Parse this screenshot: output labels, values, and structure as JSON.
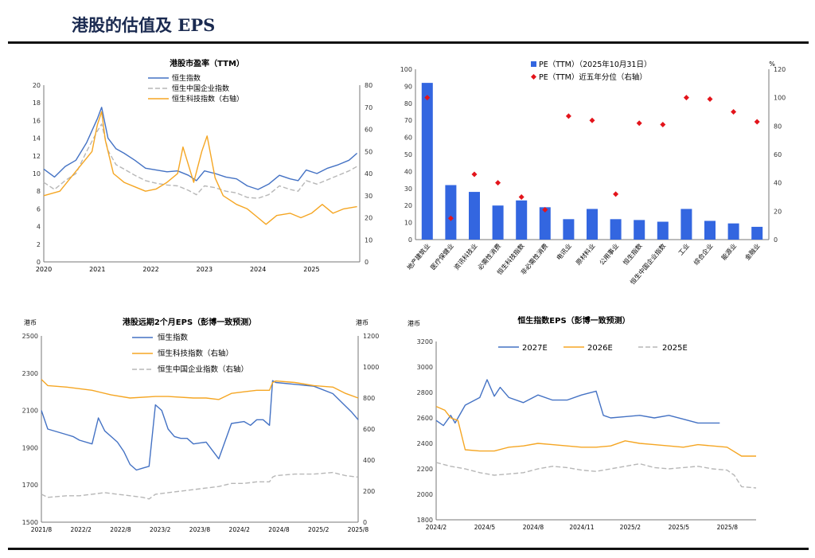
{
  "page": {
    "title": "港股的估值及 EPS"
  },
  "colors": {
    "blue": "#4472C4",
    "orange": "#F5A623",
    "gray": "#B7B7B7",
    "bar": "#3366E0",
    "dot": "#E3141B"
  },
  "chart_data": [
    {
      "type": "line",
      "title": "港股市盈率（TTM）",
      "x_ticks": [
        "2020",
        "2021",
        "2022",
        "2023",
        "2024",
        "2025"
      ],
      "x_range": [
        2020,
        2025.9
      ],
      "y_left": {
        "min": 0,
        "max": 20,
        "ticks": [
          "0",
          "2",
          "4",
          "6",
          "8",
          "10",
          "12",
          "14",
          "16",
          "18",
          "20"
        ]
      },
      "y_right": {
        "min": 0,
        "max": 80,
        "ticks": [
          "0",
          "10",
          "20",
          "30",
          "40",
          "50",
          "60",
          "70",
          "80"
        ]
      },
      "series": [
        {
          "name": "恒生指数",
          "axis": "left",
          "color": "#4472C4",
          "dash": false,
          "x": [
            2020,
            2020.2,
            2020.4,
            2020.6,
            2020.8,
            2021.0,
            2021.08,
            2021.2,
            2021.35,
            2021.5,
            2021.7,
            2021.9,
            2022.1,
            2022.3,
            2022.5,
            2022.7,
            2022.85,
            2023.0,
            2023.2,
            2023.4,
            2023.6,
            2023.8,
            2024.0,
            2024.2,
            2024.4,
            2024.6,
            2024.75,
            2024.9,
            2025.1,
            2025.3,
            2025.5,
            2025.7,
            2025.85
          ],
          "y": [
            10.5,
            9.6,
            10.8,
            11.5,
            13.5,
            16.2,
            17.5,
            14.0,
            12.8,
            12.3,
            11.5,
            10.6,
            10.4,
            10.2,
            10.3,
            9.8,
            9.2,
            10.3,
            10.0,
            9.6,
            9.4,
            8.6,
            8.2,
            8.8,
            9.8,
            9.4,
            9.2,
            10.4,
            10.0,
            10.6,
            11.0,
            11.5,
            12.3
          ]
        },
        {
          "name": "恒生中国企业指数",
          "axis": "left",
          "color": "#B7B7B7",
          "dash": true,
          "x": [
            2020,
            2020.2,
            2020.4,
            2020.6,
            2020.8,
            2021.0,
            2021.08,
            2021.2,
            2021.35,
            2021.5,
            2021.7,
            2021.9,
            2022.1,
            2022.3,
            2022.5,
            2022.7,
            2022.85,
            2023.0,
            2023.2,
            2023.4,
            2023.6,
            2023.8,
            2024.0,
            2024.2,
            2024.4,
            2024.6,
            2024.75,
            2024.9,
            2025.1,
            2025.3,
            2025.5,
            2025.7,
            2025.85
          ],
          "y": [
            9.0,
            8.2,
            9.2,
            10.0,
            12.5,
            14.8,
            15.6,
            12.6,
            11.0,
            10.5,
            9.8,
            9.2,
            8.9,
            8.7,
            8.6,
            8.1,
            7.6,
            8.6,
            8.4,
            8.0,
            7.8,
            7.3,
            7.2,
            7.6,
            8.6,
            8.2,
            8.0,
            9.2,
            8.8,
            9.3,
            9.8,
            10.3,
            10.8
          ]
        },
        {
          "name": "恒生科技指数（右轴）",
          "axis": "right",
          "color": "#F5A623",
          "dash": false,
          "x": [
            2020,
            2020.3,
            2020.5,
            2020.7,
            2020.9,
            2021.0,
            2021.08,
            2021.15,
            2021.3,
            2021.5,
            2021.7,
            2021.9,
            2022.1,
            2022.3,
            2022.5,
            2022.6,
            2022.8,
            2022.95,
            2023.05,
            2023.2,
            2023.35,
            2023.6,
            2023.8,
            2024.0,
            2024.15,
            2024.35,
            2024.6,
            2024.8,
            2025.0,
            2025.2,
            2025.4,
            2025.6,
            2025.85
          ],
          "y": [
            30,
            32,
            38,
            44,
            50,
            62,
            68,
            55,
            40,
            36,
            34,
            32,
            33,
            36,
            40,
            52,
            36,
            50,
            57,
            38,
            30,
            26,
            24,
            20,
            17,
            21,
            22,
            20,
            22,
            26,
            22,
            24,
            25
          ]
        }
      ]
    },
    {
      "type": "bar",
      "legend": [
        "PE（TTM）（2025年10月31日）",
        "PE（TTM）近五年分位（右轴）"
      ],
      "categories": [
        "地产建筑业",
        "医疗保健业",
        "资讯科技业",
        "必需性消费",
        "恒生科技指数",
        "非必需性消费",
        "电讯业",
        "原材料业",
        "公用事业",
        "恒生指数",
        "恒生中国企业指数",
        "工业",
        "综合企业",
        "能源业",
        "金融业"
      ],
      "values": [
        92,
        32,
        28,
        20,
        23,
        19,
        12,
        18,
        12,
        11.5,
        10.5,
        18,
        11,
        9.5,
        7.5
      ],
      "percentile": [
        100,
        15,
        46,
        40,
        30,
        21,
        87,
        84,
        32,
        82,
        81,
        100,
        99,
        90,
        83
      ],
      "y_left": {
        "min": 0,
        "max": 100,
        "ticks": [
          "0",
          "10",
          "20",
          "30",
          "40",
          "50",
          "60",
          "70",
          "80",
          "90",
          "100"
        ]
      },
      "y_right": {
        "min": 0,
        "max": 120,
        "ticks": [
          "0",
          "20",
          "40",
          "60",
          "80",
          "100",
          "120"
        ],
        "unit": "%"
      }
    },
    {
      "type": "line",
      "title": "港股远期2个月EPS（彭博一致预测）",
      "unit_left": "港币",
      "unit_right": "港币",
      "x_ticks": [
        "2021/8",
        "2022/2",
        "2022/8",
        "2023/2",
        "2023/8",
        "2024/2",
        "2024/8",
        "2025/2",
        "2025/8"
      ],
      "x_range": [
        0,
        50
      ],
      "y_left": {
        "min": 1500,
        "max": 2500,
        "ticks": [
          "1500",
          "1700",
          "1900",
          "2100",
          "2300",
          "2500"
        ]
      },
      "y_right": {
        "min": 0,
        "max": 1200,
        "ticks": [
          "0",
          "200",
          "400",
          "600",
          "800",
          "1000",
          "1200"
        ]
      },
      "series": [
        {
          "name": "恒生指数",
          "axis": "left",
          "color": "#4472C4",
          "dash": false,
          "x": [
            0,
            1,
            4,
            5,
            6,
            8,
            9,
            10,
            11,
            12,
            13,
            14,
            15,
            16,
            17,
            18,
            19,
            20,
            21,
            22,
            23,
            24,
            26,
            28,
            30,
            32,
            33,
            34,
            35,
            36,
            36.5,
            37,
            40,
            43,
            46,
            49,
            50
          ],
          "y": [
            2100,
            2000,
            1970,
            1960,
            1940,
            1920,
            2060,
            1990,
            1960,
            1930,
            1880,
            1810,
            1780,
            1790,
            1800,
            2130,
            2100,
            2000,
            1960,
            1950,
            1950,
            1920,
            1930,
            1840,
            2030,
            2040,
            2020,
            2050,
            2050,
            2020,
            2260,
            2250,
            2240,
            2230,
            2190,
            2090,
            2050
          ]
        },
        {
          "name": "恒生科技指数（右轴）",
          "axis": "right",
          "color": "#F5A623",
          "dash": false,
          "x": [
            0,
            1,
            4,
            6,
            8,
            11,
            14,
            18,
            20,
            24,
            26,
            28,
            30,
            32,
            34,
            36,
            36.5,
            37,
            40,
            43,
            46,
            48,
            50
          ],
          "y": [
            920,
            880,
            870,
            860,
            850,
            820,
            800,
            810,
            810,
            800,
            800,
            790,
            830,
            840,
            850,
            850,
            900,
            910,
            900,
            880,
            870,
            830,
            800
          ]
        },
        {
          "name": "恒生中国企业指数（右轴）",
          "axis": "right",
          "color": "#B7B7B7",
          "dash": true,
          "x": [
            0,
            1,
            4,
            6,
            8,
            10,
            12,
            14,
            16,
            17,
            18,
            20,
            22,
            24,
            26,
            28,
            30,
            32,
            34,
            36,
            36.5,
            37,
            40,
            43,
            46,
            48,
            50
          ],
          "y": [
            180,
            160,
            170,
            170,
            180,
            190,
            180,
            170,
            160,
            150,
            180,
            190,
            200,
            210,
            220,
            230,
            250,
            250,
            260,
            260,
            290,
            300,
            310,
            310,
            320,
            300,
            290
          ]
        }
      ]
    },
    {
      "type": "line",
      "title": "恒生指数EPS（彭博一致预测）",
      "unit_left": "港币",
      "x_ticks": [
        "2024/2",
        "2024/5",
        "2024/8",
        "2024/11",
        "2025/2",
        "2025/5",
        "2025/8"
      ],
      "x_range": [
        0,
        22
      ],
      "y_left": {
        "min": 1800,
        "max": 3200,
        "ticks": [
          "1800",
          "2000",
          "2200",
          "2400",
          "2600",
          "2800",
          "3000",
          "3200"
        ]
      },
      "series": [
        {
          "name": "2027E",
          "color": "#4472C4",
          "dash": false,
          "x": [
            0,
            0.5,
            1,
            1.3,
            2,
            3,
            3.5,
            4,
            4.4,
            5,
            6,
            7,
            8,
            9,
            10,
            11,
            11.5,
            12,
            13,
            14,
            15,
            16,
            17,
            18,
            19,
            19.5
          ],
          "y": [
            2580,
            2540,
            2620,
            2560,
            2700,
            2760,
            2900,
            2770,
            2840,
            2760,
            2720,
            2780,
            2740,
            2740,
            2780,
            2810,
            2620,
            2600,
            2610,
            2620,
            2600,
            2620,
            2590,
            2560,
            2560,
            2560
          ]
        },
        {
          "name": "2026E",
          "color": "#F5A623",
          "dash": false,
          "x": [
            0,
            0.6,
            1,
            1.5,
            2,
            3,
            4,
            5,
            6,
            7,
            8,
            9,
            10,
            11,
            12,
            13,
            14,
            15,
            16,
            17,
            18,
            19,
            20,
            21,
            22
          ],
          "y": [
            2690,
            2660,
            2600,
            2580,
            2350,
            2340,
            2340,
            2370,
            2380,
            2400,
            2390,
            2380,
            2370,
            2370,
            2380,
            2420,
            2400,
            2390,
            2380,
            2370,
            2390,
            2380,
            2370,
            2300,
            2300
          ]
        },
        {
          "name": "2025E",
          "color": "#B7B7B7",
          "dash": true,
          "x": [
            0,
            1,
            2,
            3,
            4,
            5,
            6,
            7,
            8,
            9,
            10,
            11,
            12,
            13,
            14,
            15,
            16,
            17,
            18,
            19,
            20,
            20.5,
            21,
            22
          ],
          "y": [
            2250,
            2220,
            2200,
            2170,
            2150,
            2160,
            2170,
            2200,
            2220,
            2210,
            2190,
            2180,
            2200,
            2220,
            2240,
            2210,
            2200,
            2210,
            2220,
            2200,
            2190,
            2150,
            2060,
            2050
          ]
        }
      ]
    }
  ]
}
